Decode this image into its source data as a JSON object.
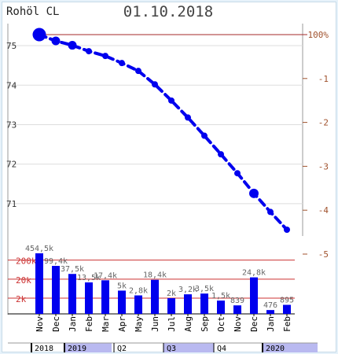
{
  "header": {
    "instrument": "Rohöl CL",
    "date": "01.10.2018"
  },
  "colors": {
    "line": "#0000ee",
    "bar": "#0000ee",
    "ref_line": "#a52a2a",
    "right_axis_text": "#a0522d",
    "left_axis_text": "#333333",
    "bar_label_text": "#666666",
    "bar_ref_text": "#cc3333",
    "grid": "#dddddd",
    "timeline_fill": "#b9b9f0"
  },
  "chart_data": [
    {
      "type": "line",
      "x": [
        "Nov",
        "Dec",
        "Jan",
        "Feb",
        "Mar",
        "Apr",
        "May",
        "Jun",
        "Jul",
        "Aug",
        "Sep",
        "Oct",
        "Nov",
        "Dec",
        "Jan",
        "Feb"
      ],
      "series": [
        {
          "values": [
            75.28,
            75.12,
            75.01,
            74.86,
            74.74,
            74.56,
            74.36,
            74.02,
            73.61,
            73.18,
            72.72,
            72.25,
            71.77,
            71.26,
            70.79,
            70.34
          ]
        }
      ],
      "highlighted_points": [
        0,
        1,
        2,
        13
      ],
      "left_axis": {
        "ticks": [
          "75",
          "74",
          "73",
          "72",
          "71"
        ],
        "ylim": [
          70.25,
          75.55
        ]
      },
      "right_axis": {
        "ticks": [
          "100%",
          "-1",
          "-2",
          "-3",
          "-4",
          "-5"
        ]
      },
      "reference_line": 75.28,
      "grid": true
    },
    {
      "type": "bar",
      "categories": [
        "Nov",
        "Dec",
        "Jan",
        "Feb",
        "Mar",
        "Apr",
        "May",
        "Jun",
        "Jul",
        "Aug",
        "Sep",
        "Oct",
        "Nov",
        "Dec",
        "Jan",
        "Feb"
      ],
      "values": [
        454500,
        99400,
        37500,
        13500,
        17400,
        5000,
        2800,
        18400,
        2000,
        3200,
        3500,
        1500,
        839,
        24800,
        476,
        895
      ],
      "labels": [
        "454,5k",
        "99,4k",
        "37,5k",
        "13,5k",
        "17,4k",
        "5k",
        "2,8k",
        "18,4k",
        "2k",
        "3,2k",
        "3,5k",
        "1,5k",
        "839",
        "24,8k",
        "476",
        "895"
      ],
      "reference_lines": [
        "200k",
        "20k",
        "2k"
      ],
      "scale": "log"
    }
  ],
  "timeline": {
    "labels": [
      "2018",
      "2019",
      "Q2",
      "Q3",
      "Q4",
      "2020"
    ]
  }
}
